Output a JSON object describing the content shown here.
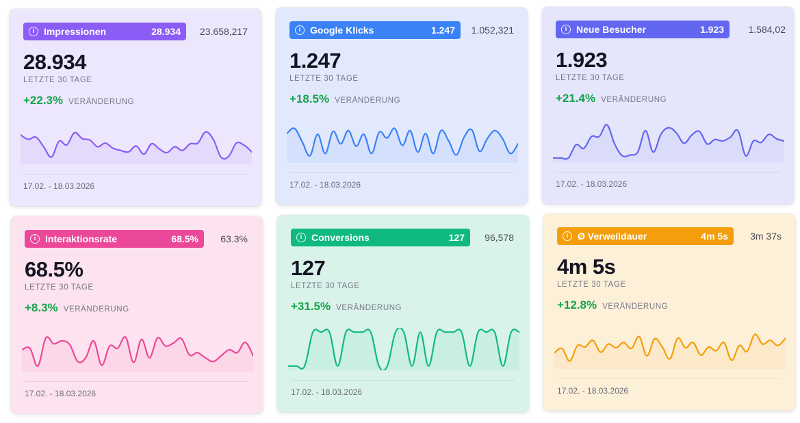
{
  "cards": [
    {
      "label": "Impressionen",
      "badge_value": "28.934",
      "total": "23.658,217",
      "value": "28.934",
      "period": "LETZTE 30 TAGE",
      "change": "+22.3%",
      "change_label": "VERÄNDERUNG",
      "date_range": "17.02. - 18.03.2026",
      "accent": "#8b5cf6",
      "background": "#ece7fd",
      "line_color": "#8b5cf6",
      "sparkline": [
        0.72,
        0.6,
        0.66,
        0.4,
        0.12,
        0.55,
        0.45,
        0.78,
        0.62,
        0.58,
        0.4,
        0.5,
        0.36,
        0.3,
        0.26,
        0.42,
        0.2,
        0.48,
        0.34,
        0.24,
        0.4,
        0.3,
        0.48,
        0.5,
        0.8,
        0.6,
        0.12,
        0.14,
        0.5,
        0.44,
        0.26
      ]
    },
    {
      "label": "Google Klicks",
      "badge_value": "1.247",
      "total": "1.052,321",
      "value": "1.247",
      "period": "LETZTE 30 TAGE",
      "change": "+18.5%",
      "change_label": "VERÄNDERUNG",
      "date_range": "17.02. - 18.03.2026",
      "accent": "#3b82f6",
      "background": "#e2e9fd",
      "line_color": "#3b82f6",
      "sparkline": [
        0.72,
        0.86,
        0.5,
        0.12,
        0.7,
        0.18,
        0.78,
        0.44,
        0.8,
        0.38,
        0.7,
        0.18,
        0.76,
        0.6,
        0.86,
        0.4,
        0.8,
        0.22,
        0.72,
        0.18,
        0.8,
        0.52,
        0.14,
        0.62,
        0.82,
        0.24,
        0.58,
        0.8,
        0.58,
        0.18,
        0.44
      ]
    },
    {
      "label": "Neue Besucher",
      "badge_value": "1.923",
      "total": "1.584,02",
      "value": "1.923",
      "period": "LETZTE 30 TAGE",
      "change": "+21.4%",
      "change_label": "VERÄNDERUNG",
      "date_range": "17.02. - 18.03.2026",
      "accent": "#6366f1",
      "background": "#e5e6fb",
      "line_color": "#6366f1",
      "sparkline": [
        0.04,
        0.04,
        0.04,
        0.4,
        0.3,
        0.62,
        0.62,
        0.94,
        0.42,
        0.1,
        0.12,
        0.2,
        0.78,
        0.2,
        0.68,
        0.86,
        0.72,
        0.44,
        0.66,
        0.76,
        0.42,
        0.54,
        0.5,
        0.6,
        0.78,
        0.1,
        0.5,
        0.46,
        0.68,
        0.56,
        0.5
      ]
    },
    {
      "label": "Interaktionsrate",
      "badge_value": "68.5%",
      "total": "63.3%",
      "value": "68.5%",
      "period": "LETZTE 30 TAGE",
      "change": "+8.3%",
      "change_label": "VERÄNDERUNG",
      "date_range": "17.02. - 18.03.2026",
      "accent": "#ec4899",
      "background": "#fce3ef",
      "line_color": "#ec4899",
      "sparkline": [
        0.52,
        0.56,
        0.08,
        0.84,
        0.68,
        0.76,
        0.66,
        0.2,
        0.3,
        0.76,
        0.1,
        0.62,
        0.56,
        0.86,
        0.18,
        0.8,
        0.3,
        0.84,
        0.62,
        0.7,
        0.82,
        0.38,
        0.44,
        0.3,
        0.2,
        0.36,
        0.52,
        0.44,
        0.72,
        0.36
      ]
    },
    {
      "label": "Conversions",
      "badge_value": "127",
      "total": "96,578",
      "value": "127",
      "period": "LETZTE 30 TAGE",
      "change": "+31.5%",
      "change_label": "VERÄNDERUNG",
      "date_range": "17.02. - 18.03.2026",
      "accent": "#10b981",
      "background": "#d9f3ea",
      "line_color": "#10b981",
      "sparkline": [
        0.04,
        0.04,
        0.04,
        0.96,
        0.96,
        0.96,
        0.04,
        0.96,
        0.96,
        0.96,
        0.96,
        0.04,
        0.04,
        0.96,
        0.96,
        0.04,
        0.96,
        0.04,
        0.96,
        0.96,
        0.96,
        0.96,
        0.04,
        0.96,
        0.96,
        0.96,
        0.04,
        0.96,
        0.96
      ]
    },
    {
      "label": "Ø Verweildauer",
      "badge_value": "4m 5s",
      "total": "3m 37s",
      "value": "4m 5s",
      "period": "LETZTE 30 TAGE",
      "change": "+12.8%",
      "change_label": "VERÄNDERUNG",
      "date_range": "17.02. - 18.03.2026",
      "accent": "#f59e0b",
      "background": "#fdf0d9",
      "line_color": "#f59e0b",
      "sparkline": [
        0.36,
        0.48,
        0.14,
        0.56,
        0.52,
        0.7,
        0.38,
        0.6,
        0.5,
        0.64,
        0.48,
        0.8,
        0.28,
        0.74,
        0.52,
        0.2,
        0.76,
        0.5,
        0.64,
        0.3,
        0.52,
        0.42,
        0.64,
        0.16,
        0.56,
        0.4,
        0.86,
        0.6,
        0.7,
        0.56,
        0.76
      ]
    }
  ]
}
